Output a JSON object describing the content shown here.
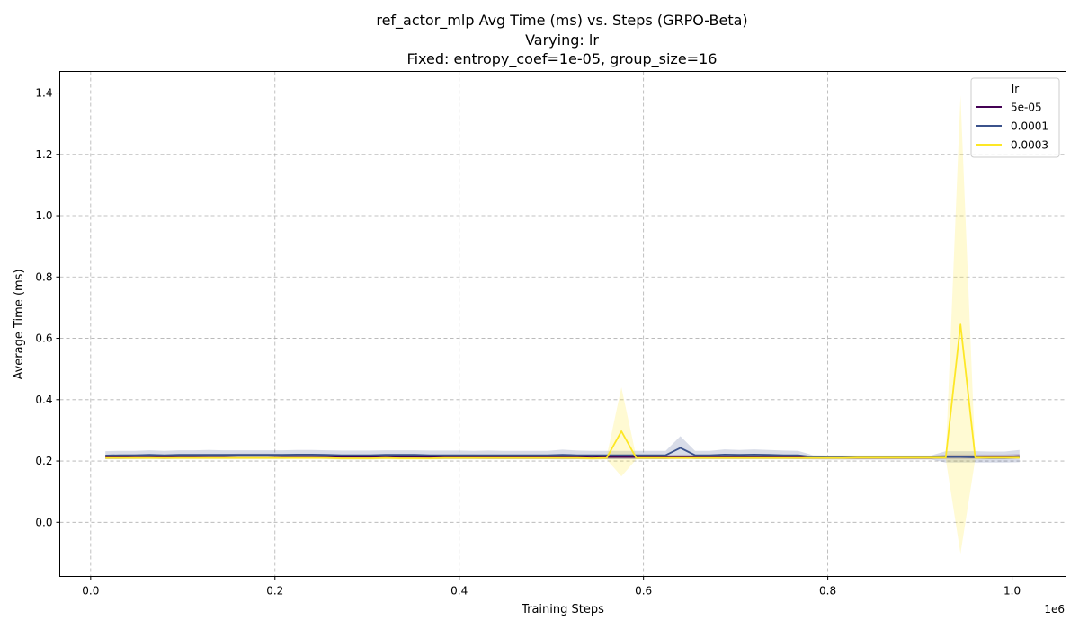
{
  "chart_data": {
    "type": "line",
    "title": "ref_actor_mlp Avg Time (ms) vs. Steps (GRPO-Beta)",
    "subtitle1": "Varying: lr",
    "subtitle2": "Fixed: entropy_coef=1e-05, group_size=16",
    "xlabel": "Training Steps",
    "ylabel": "Average Time (ms)",
    "x_offset_label": "1e6",
    "xlim": [
      -0.0335,
      1.0585
    ],
    "ylim": [
      -0.1764,
      1.4704
    ],
    "grid": true,
    "x_ticks": [
      0.0,
      0.2,
      0.4,
      0.6,
      0.8,
      1.0
    ],
    "x_tick_labels": [
      "0.0",
      "0.2",
      "0.4",
      "0.6",
      "0.8",
      "1.0"
    ],
    "y_ticks": [
      0.0,
      0.2,
      0.4,
      0.6,
      0.8,
      1.0,
      1.2,
      1.4
    ],
    "y_tick_labels": [
      "0.0",
      "0.2",
      "0.4",
      "0.6",
      "0.8",
      "1.0",
      "1.2",
      "1.4"
    ],
    "legend": {
      "title": "lr",
      "position": "top-right"
    },
    "x": [
      0.016,
      0.032,
      0.048,
      0.064,
      0.08,
      0.096,
      0.112,
      0.128,
      0.144,
      0.16,
      0.176,
      0.192,
      0.208,
      0.224,
      0.24,
      0.256,
      0.272,
      0.288,
      0.304,
      0.32,
      0.336,
      0.352,
      0.368,
      0.384,
      0.4,
      0.416,
      0.432,
      0.448,
      0.464,
      0.48,
      0.496,
      0.512,
      0.528,
      0.544,
      0.56,
      0.576,
      0.592,
      0.608,
      0.624,
      0.64,
      0.656,
      0.672,
      0.688,
      0.704,
      0.72,
      0.736,
      0.752,
      0.768,
      0.784,
      0.8,
      0.816,
      0.832,
      0.848,
      0.864,
      0.88,
      0.896,
      0.912,
      0.928,
      0.944,
      0.96,
      0.976,
      0.992,
      1.008
    ],
    "series": [
      {
        "name": "5e-05",
        "color": "#440154",
        "values": [
          0.213,
          0.214,
          0.215,
          0.215,
          0.214,
          0.215,
          0.215,
          0.216,
          0.216,
          0.217,
          0.217,
          0.217,
          0.216,
          0.216,
          0.216,
          0.215,
          0.214,
          0.214,
          0.214,
          0.215,
          0.214,
          0.214,
          0.213,
          0.214,
          0.214,
          0.214,
          0.213,
          0.213,
          0.213,
          0.213,
          0.213,
          0.213,
          0.213,
          0.212,
          0.213,
          0.213,
          0.213,
          0.213,
          0.213,
          0.214,
          0.214,
          0.214,
          0.214,
          0.214,
          0.214,
          0.214,
          0.214,
          0.213,
          0.211,
          0.211,
          0.211,
          0.211,
          0.211,
          0.211,
          0.211,
          0.211,
          0.211,
          0.214,
          0.214,
          0.214,
          0.214,
          0.214,
          0.216
        ],
        "lower": [
          0.206,
          0.207,
          0.208,
          0.208,
          0.207,
          0.208,
          0.208,
          0.209,
          0.209,
          0.21,
          0.21,
          0.21,
          0.209,
          0.209,
          0.209,
          0.208,
          0.207,
          0.207,
          0.207,
          0.208,
          0.207,
          0.207,
          0.206,
          0.207,
          0.207,
          0.207,
          0.206,
          0.206,
          0.206,
          0.206,
          0.206,
          0.206,
          0.206,
          0.205,
          0.206,
          0.206,
          0.206,
          0.206,
          0.206,
          0.207,
          0.207,
          0.207,
          0.207,
          0.207,
          0.207,
          0.207,
          0.207,
          0.206,
          0.205,
          0.205,
          0.205,
          0.205,
          0.205,
          0.205,
          0.205,
          0.205,
          0.205,
          0.207,
          0.207,
          0.207,
          0.207,
          0.207,
          0.209
        ],
        "upper": [
          0.22,
          0.221,
          0.222,
          0.222,
          0.221,
          0.222,
          0.222,
          0.223,
          0.223,
          0.224,
          0.224,
          0.224,
          0.223,
          0.223,
          0.223,
          0.222,
          0.221,
          0.221,
          0.221,
          0.222,
          0.221,
          0.221,
          0.22,
          0.221,
          0.221,
          0.221,
          0.22,
          0.22,
          0.22,
          0.22,
          0.22,
          0.22,
          0.22,
          0.219,
          0.22,
          0.22,
          0.22,
          0.22,
          0.22,
          0.221,
          0.221,
          0.221,
          0.221,
          0.221,
          0.221,
          0.221,
          0.221,
          0.22,
          0.217,
          0.217,
          0.217,
          0.217,
          0.217,
          0.217,
          0.217,
          0.217,
          0.217,
          0.221,
          0.221,
          0.221,
          0.221,
          0.221,
          0.223
        ]
      },
      {
        "name": "0.0001",
        "color": "#3b528b",
        "values": [
          0.218,
          0.219,
          0.219,
          0.22,
          0.219,
          0.22,
          0.22,
          0.22,
          0.22,
          0.22,
          0.22,
          0.22,
          0.22,
          0.221,
          0.221,
          0.22,
          0.219,
          0.219,
          0.219,
          0.22,
          0.22,
          0.22,
          0.219,
          0.219,
          0.219,
          0.219,
          0.219,
          0.219,
          0.219,
          0.219,
          0.219,
          0.22,
          0.219,
          0.219,
          0.219,
          0.219,
          0.219,
          0.219,
          0.219,
          0.243,
          0.219,
          0.219,
          0.221,
          0.22,
          0.221,
          0.22,
          0.219,
          0.219,
          0.213,
          0.212,
          0.212,
          0.212,
          0.212,
          0.212,
          0.212,
          0.212,
          0.212,
          0.213,
          0.213,
          0.212,
          0.21,
          0.21,
          0.212
        ],
        "lower": [
          0.206,
          0.206,
          0.206,
          0.207,
          0.206,
          0.207,
          0.207,
          0.207,
          0.207,
          0.207,
          0.207,
          0.207,
          0.207,
          0.208,
          0.208,
          0.207,
          0.205,
          0.205,
          0.205,
          0.207,
          0.207,
          0.207,
          0.206,
          0.206,
          0.206,
          0.206,
          0.206,
          0.206,
          0.206,
          0.206,
          0.206,
          0.205,
          0.206,
          0.206,
          0.206,
          0.206,
          0.206,
          0.206,
          0.206,
          0.212,
          0.206,
          0.206,
          0.206,
          0.206,
          0.206,
          0.206,
          0.206,
          0.206,
          0.206,
          0.205,
          0.205,
          0.205,
          0.205,
          0.205,
          0.205,
          0.205,
          0.205,
          0.195,
          0.195,
          0.195,
          0.195,
          0.195,
          0.196
        ],
        "upper": [
          0.232,
          0.233,
          0.233,
          0.235,
          0.233,
          0.235,
          0.235,
          0.236,
          0.235,
          0.235,
          0.235,
          0.235,
          0.235,
          0.236,
          0.236,
          0.235,
          0.234,
          0.234,
          0.234,
          0.235,
          0.235,
          0.235,
          0.234,
          0.234,
          0.234,
          0.233,
          0.234,
          0.233,
          0.233,
          0.233,
          0.233,
          0.237,
          0.234,
          0.233,
          0.233,
          0.233,
          0.233,
          0.233,
          0.233,
          0.281,
          0.233,
          0.233,
          0.238,
          0.236,
          0.238,
          0.236,
          0.234,
          0.233,
          0.219,
          0.218,
          0.218,
          0.218,
          0.218,
          0.218,
          0.218,
          0.218,
          0.218,
          0.232,
          0.232,
          0.232,
          0.231,
          0.231,
          0.236
        ]
      },
      {
        "name": "0.0003",
        "color": "#fde725",
        "values": [
          0.21,
          0.21,
          0.21,
          0.21,
          0.21,
          0.21,
          0.21,
          0.21,
          0.21,
          0.21,
          0.21,
          0.21,
          0.21,
          0.21,
          0.21,
          0.21,
          0.209,
          0.209,
          0.209,
          0.21,
          0.209,
          0.209,
          0.209,
          0.21,
          0.21,
          0.21,
          0.21,
          0.21,
          0.21,
          0.21,
          0.21,
          0.21,
          0.21,
          0.209,
          0.21,
          0.297,
          0.21,
          0.21,
          0.21,
          0.21,
          0.21,
          0.21,
          0.21,
          0.21,
          0.21,
          0.21,
          0.21,
          0.21,
          0.21,
          0.21,
          0.21,
          0.211,
          0.211,
          0.211,
          0.211,
          0.211,
          0.211,
          0.211,
          0.645,
          0.211,
          0.211,
          0.211,
          0.211
        ],
        "lower": [
          0.205,
          0.205,
          0.205,
          0.205,
          0.205,
          0.205,
          0.205,
          0.205,
          0.205,
          0.205,
          0.205,
          0.205,
          0.205,
          0.205,
          0.205,
          0.205,
          0.204,
          0.204,
          0.204,
          0.205,
          0.204,
          0.204,
          0.204,
          0.205,
          0.205,
          0.205,
          0.205,
          0.205,
          0.205,
          0.205,
          0.205,
          0.205,
          0.205,
          0.204,
          0.205,
          0.15,
          0.205,
          0.205,
          0.205,
          0.205,
          0.205,
          0.205,
          0.205,
          0.205,
          0.205,
          0.205,
          0.205,
          0.205,
          0.205,
          0.205,
          0.205,
          0.206,
          0.206,
          0.206,
          0.206,
          0.206,
          0.206,
          0.206,
          -0.102,
          0.206,
          0.206,
          0.206,
          0.206
        ],
        "upper": [
          0.215,
          0.215,
          0.215,
          0.215,
          0.215,
          0.215,
          0.215,
          0.215,
          0.215,
          0.215,
          0.215,
          0.215,
          0.215,
          0.215,
          0.215,
          0.215,
          0.214,
          0.214,
          0.214,
          0.215,
          0.214,
          0.214,
          0.214,
          0.215,
          0.215,
          0.215,
          0.215,
          0.215,
          0.215,
          0.215,
          0.215,
          0.215,
          0.215,
          0.214,
          0.215,
          0.44,
          0.215,
          0.215,
          0.215,
          0.215,
          0.215,
          0.215,
          0.215,
          0.215,
          0.215,
          0.215,
          0.215,
          0.215,
          0.215,
          0.215,
          0.215,
          0.216,
          0.216,
          0.216,
          0.216,
          0.216,
          0.216,
          0.216,
          1.392,
          0.216,
          0.216,
          0.216,
          0.216
        ]
      }
    ]
  }
}
